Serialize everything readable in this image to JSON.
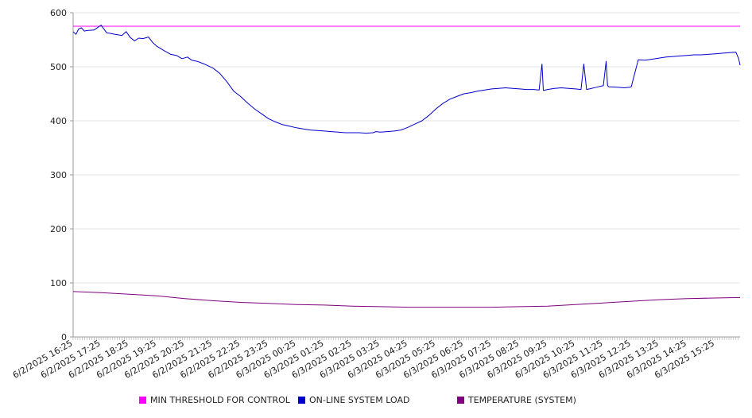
{
  "chart_data": {
    "type": "line",
    "title": "",
    "xlabel": "",
    "ylabel": "",
    "ylim": [
      0,
      600
    ],
    "yticks": [
      0,
      100,
      200,
      300,
      400,
      500,
      600
    ],
    "grid": true,
    "legend_position": "bottom",
    "x_tick_labels": [
      "6/2/2025 16:25",
      "6/2/2025 17:25",
      "6/2/2025 18:25",
      "6/2/2025 19:25",
      "6/2/2025 20:25",
      "6/2/2025 21:25",
      "6/2/2025 22:25",
      "6/2/2025 23:25",
      "6/3/2025 00:25",
      "6/3/2025 01:25",
      "6/3/2025 02:25",
      "6/3/2025 03:25",
      "6/3/2025 04:25",
      "6/3/2025 05:25",
      "6/3/2025 06:25",
      "6/3/2025 07:25",
      "6/3/2025 08:25",
      "6/3/2025 09:25",
      "6/3/2025 10:25",
      "6/3/2025 11:25",
      "6/3/2025 12:25",
      "6/3/2025 13:25",
      "6/3/2025 14:25",
      "6/3/2025 15:25"
    ],
    "x_range_hours": [
      0,
      23.9
    ],
    "series": [
      {
        "name": "MIN THRESHOLD FOR CONTROL",
        "color": "#ff00ff",
        "x": [
          0,
          23.9
        ],
        "values": [
          575,
          575
        ]
      },
      {
        "name": "ON-LINE SYSTEM LOAD",
        "color": "#0000cc",
        "x": [
          0,
          0.1,
          0.2,
          0.3,
          0.4,
          0.5,
          0.75,
          1.0,
          1.1,
          1.2,
          1.3,
          1.5,
          1.75,
          1.9,
          2.05,
          2.2,
          2.35,
          2.5,
          2.7,
          2.85,
          3.0,
          3.25,
          3.5,
          3.7,
          3.9,
          4.1,
          4.25,
          4.45,
          4.7,
          5.0,
          5.25,
          5.5,
          5.75,
          6.0,
          6.25,
          6.5,
          6.75,
          7.0,
          7.25,
          7.5,
          7.75,
          8.0,
          8.25,
          8.5,
          8.75,
          9.0,
          9.25,
          9.5,
          9.75,
          10.0,
          10.25,
          10.5,
          10.75,
          10.85,
          11.0,
          11.25,
          11.5,
          11.75,
          12.0,
          12.25,
          12.5,
          12.75,
          13.0,
          13.25,
          13.5,
          13.75,
          14.0,
          14.25,
          14.5,
          14.75,
          15.0,
          15.25,
          15.5,
          15.75,
          16.0,
          16.25,
          16.5,
          16.7,
          16.8,
          16.85,
          17.0,
          17.25,
          17.5,
          17.75,
          18.0,
          18.2,
          18.3,
          18.4,
          18.5,
          18.75,
          19.0,
          19.1,
          19.15,
          19.2,
          19.5,
          19.75,
          19.95,
          20.0,
          20.25,
          20.5,
          20.75,
          21.0,
          21.25,
          21.5,
          21.75,
          22.0,
          22.25,
          22.5,
          22.75,
          23.0,
          23.25,
          23.5,
          23.75,
          23.85,
          23.9
        ],
        "values": [
          565,
          560,
          570,
          572,
          566,
          567,
          568,
          577,
          570,
          563,
          562,
          560,
          558,
          565,
          554,
          548,
          553,
          552,
          555,
          545,
          538,
          530,
          523,
          521,
          515,
          518,
          512,
          510,
          505,
          498,
          488,
          473,
          455,
          445,
          433,
          422,
          413,
          404,
          398,
          393,
          390,
          387,
          385,
          383,
          382,
          381,
          380,
          379,
          378,
          378,
          378,
          377,
          378,
          380,
          379,
          380,
          381,
          383,
          388,
          394,
          400,
          410,
          422,
          432,
          440,
          445,
          450,
          452,
          455,
          457,
          459,
          460,
          461,
          460,
          459,
          458,
          458,
          457,
          505,
          456,
          458,
          460,
          461,
          460,
          459,
          458,
          505,
          458,
          459,
          462,
          465,
          510,
          465,
          463,
          462,
          461,
          462,
          463,
          513,
          512,
          514,
          516,
          518,
          519,
          520,
          521,
          522,
          522,
          523,
          524,
          525,
          526,
          527,
          515,
          503
        ]
      },
      {
        "name": "TEMPERATURE (SYSTEM)",
        "color": "#800080",
        "x": [
          0,
          1,
          2,
          3,
          4,
          5,
          6,
          7,
          8,
          9,
          10,
          11,
          12,
          13,
          14,
          15,
          16,
          17,
          18,
          19,
          20,
          21,
          22,
          23,
          23.9
        ],
        "values": [
          84,
          82,
          79,
          76,
          71,
          67,
          64,
          62,
          60,
          59,
          57,
          56,
          55,
          55,
          55,
          55,
          56,
          57,
          60,
          63,
          66,
          69,
          71,
          72,
          73
        ]
      }
    ]
  }
}
